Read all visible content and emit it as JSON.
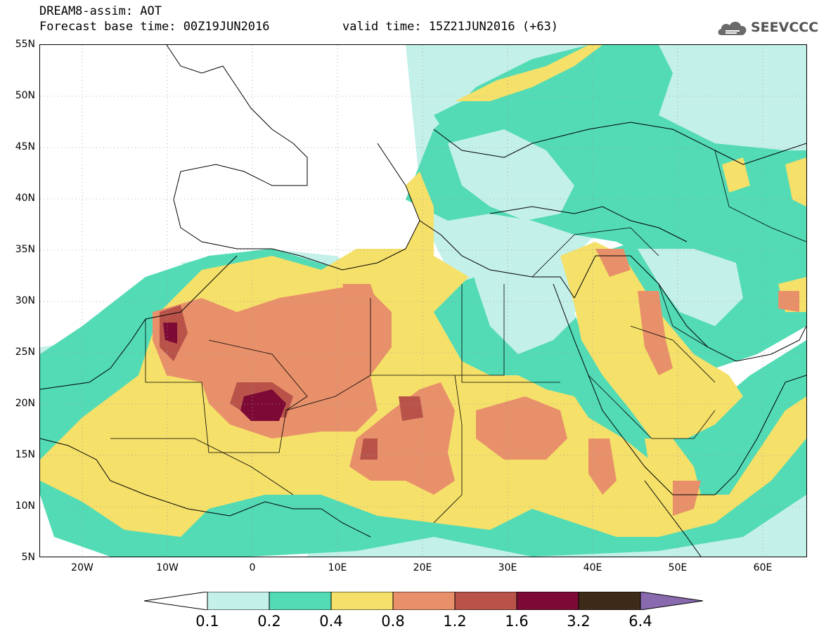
{
  "header": {
    "title_line1": "DREAM8-assim: AOT",
    "title_line2": "Forecast base time: 00Z19JUN2016",
    "valid_time": "valid time: 15Z21JUN2016 (+63)"
  },
  "logo": {
    "text": "SEEVCCC",
    "icon": "cloud-icon"
  },
  "map": {
    "extent": {
      "lon": [
        -25,
        65
      ],
      "lat": [
        5,
        55
      ]
    },
    "lat_labels": [
      "55N",
      "50N",
      "45N",
      "40N",
      "35N",
      "30N",
      "25N",
      "20N",
      "15N",
      "10N",
      "5N"
    ],
    "lon_labels": [
      "20W",
      "10W",
      "0",
      "10E",
      "20E",
      "30E",
      "40E",
      "50E",
      "60E"
    ],
    "gridlines": "dotted"
  },
  "colorbar": {
    "labels": [
      "0.1",
      "0.2",
      "0.4",
      "0.8",
      "1.2",
      "1.6",
      "3.2",
      "6.4"
    ],
    "colors": {
      "below": "#ffffff",
      "c1": "#c4f0ea",
      "c2": "#52dbb5",
      "c3": "#f5e06a",
      "c4": "#e8906a",
      "c5": "#b9534a",
      "c6": "#7d0a35",
      "c7": "#3d2a17",
      "above": "#8a6aae"
    }
  }
}
